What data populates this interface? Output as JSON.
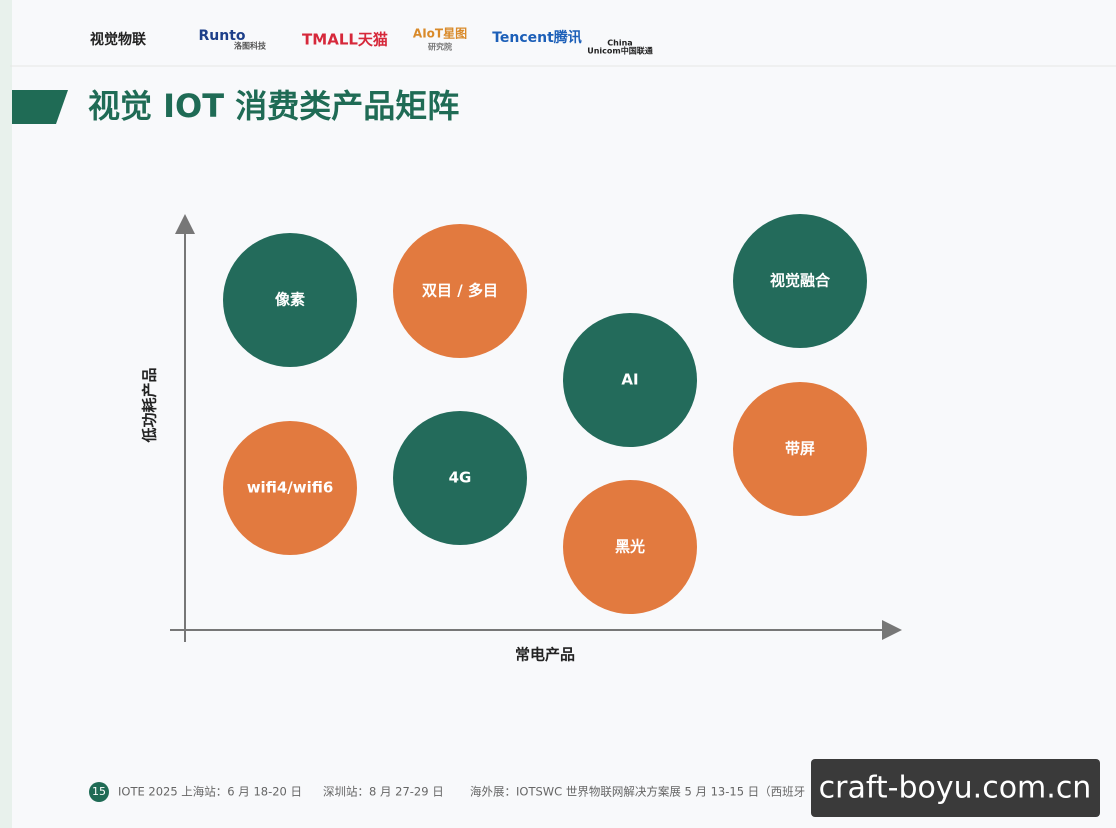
{
  "header": {
    "logos": [
      "视觉物联",
      "Runto",
      "洛图科技",
      "TMALL天猫",
      "AIoT星图",
      "研究院",
      "Tencent腾讯",
      "China",
      "Unicom中国联通"
    ],
    "title": "视觉 IOT 消费类产品矩阵"
  },
  "diagram": {
    "y_axis_label": "低功耗产品",
    "x_axis_label": "常电产品",
    "nodes": [
      {
        "label": "像素",
        "color": "#236b5b"
      },
      {
        "label": "双目 / 多目",
        "color": "#e27a3f"
      },
      {
        "label": "AI",
        "color": "#236b5b"
      },
      {
        "label": "视觉融合",
        "color": "#236b5b"
      },
      {
        "label": "wifi4/wifi6",
        "color": "#e27a3f"
      },
      {
        "label": "4G",
        "color": "#236b5b"
      },
      {
        "label": "黑光",
        "color": "#e27a3f"
      },
      {
        "label": "带屏",
        "color": "#e27a3f"
      }
    ]
  },
  "footer": {
    "page": "15",
    "items": [
      "IOTE 2025 上海站：6 月 18-20 日",
      "深圳站：8 月 27-29 日",
      "海外展：IOTSWC 世界物联网解决方案展 5 月 13-15 日（西班牙"
    ]
  },
  "watermark": "craft-boyu.com.cn"
}
